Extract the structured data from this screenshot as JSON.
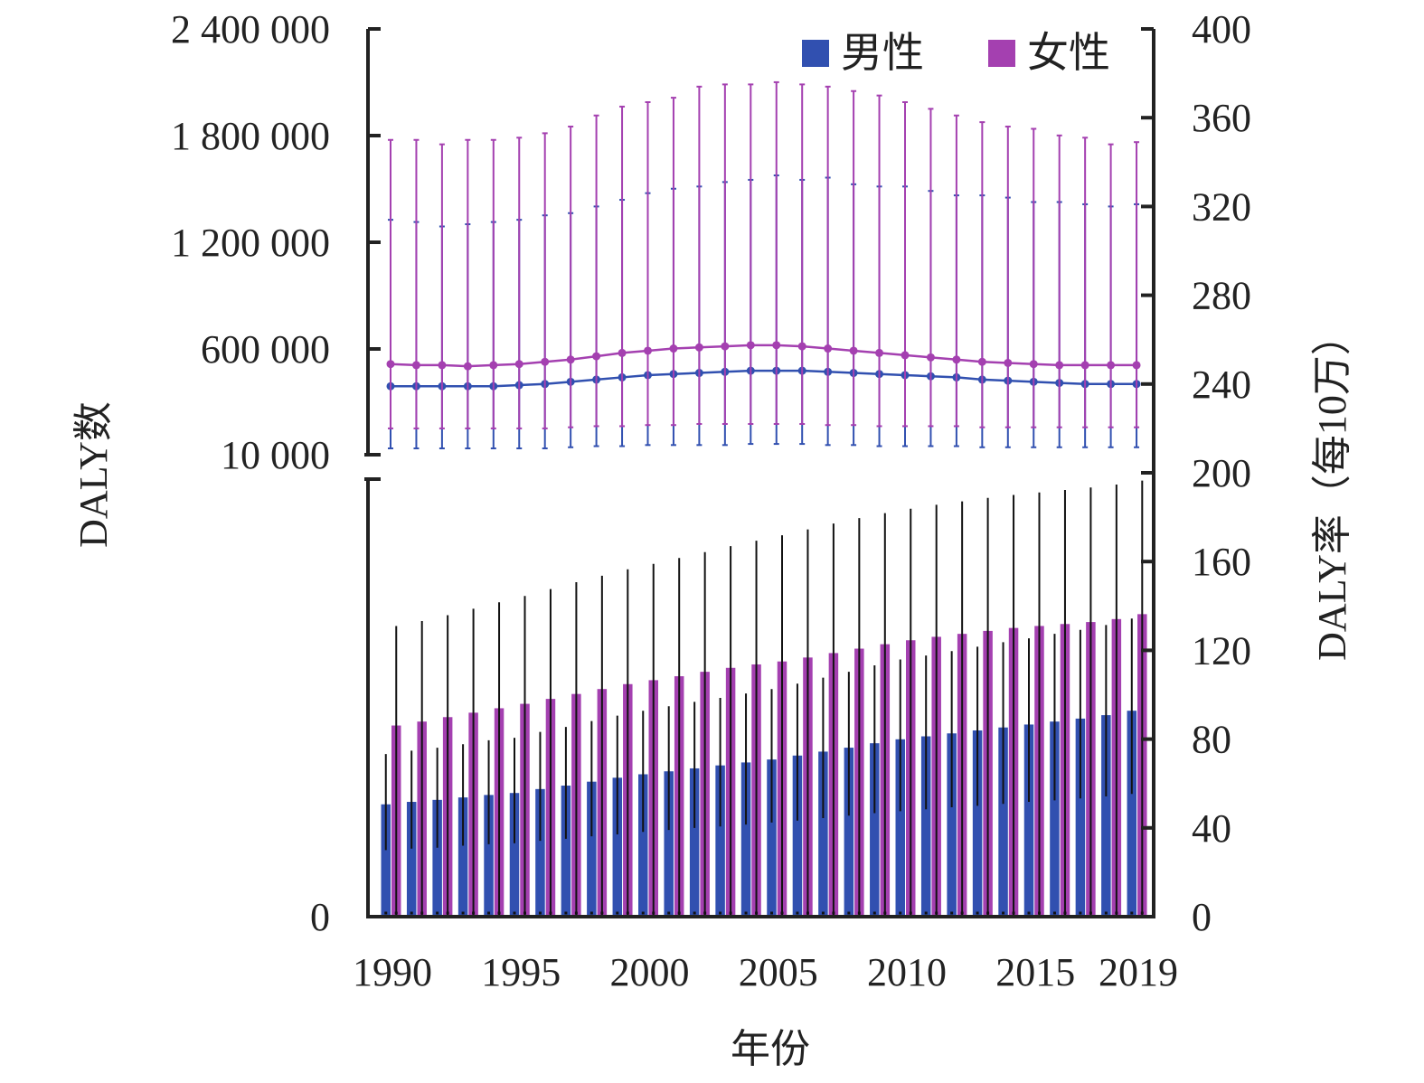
{
  "chart_data": {
    "type": "bar",
    "title": "",
    "xlabel": "年份",
    "ylabel_left": "DALY数",
    "ylabel_right": "DALY率（每10万）",
    "x": [
      1990,
      1991,
      1992,
      1993,
      1994,
      1995,
      1996,
      1997,
      1998,
      1999,
      2000,
      2001,
      2002,
      2003,
      2004,
      2005,
      2006,
      2007,
      2008,
      2009,
      2010,
      2011,
      2012,
      2013,
      2014,
      2015,
      2016,
      2017,
      2018,
      2019
    ],
    "x_tick_labels": [
      "1990",
      "1995",
      "2000",
      "2005",
      "2010",
      "2015",
      "2019"
    ],
    "left_ticks": [
      "0",
      "10 000",
      "600 000",
      "1 200 000",
      "1 800 000",
      "2 400 000"
    ],
    "right_ticks": [
      "0",
      "40",
      "80",
      "120",
      "160",
      "200",
      "240",
      "280",
      "320",
      "360",
      "400"
    ],
    "left_axis_break": "between 0 and 10 000",
    "right_ylim": [
      0,
      400
    ],
    "legend": {
      "position": "top-right",
      "entries": [
        "男性",
        "女性"
      ]
    },
    "colors": {
      "male": "#3150b0",
      "female": "#a440b0",
      "axis": "#222222",
      "errorbar": "#111111"
    },
    "series": [
      {
        "name": "男性",
        "kind": "bar",
        "axis": "left",
        "values": [
          228000.0,
          233000.0,
          237000.0,
          242000.0,
          247000.0,
          251000.0,
          259000.0,
          266000.0,
          274000.0,
          282000.0,
          289000.0,
          295000.0,
          301000.0,
          307000.0,
          313000.0,
          319000.0,
          327000.0,
          335000.0,
          343000.0,
          352000.0,
          360000.0,
          366000.0,
          372000.0,
          378000.0,
          384000.0,
          390000.0,
          396000.0,
          402000.0,
          409000.0,
          418000.0
        ],
        "error_low": [
          135000.0,
          138000.0,
          140000.0,
          144000.0,
          147000.0,
          149000.0,
          154000.0,
          158000.0,
          163000.0,
          167000.0,
          172000.0,
          176000.0,
          180000.0,
          183000.0,
          187000.0,
          191000.0,
          195000.0,
          200000.0,
          205000.0,
          210000.0,
          214000.0,
          218000.0,
          222000.0,
          225000.0,
          229000.0,
          233000.0,
          236000.0,
          240000.0,
          244000.0,
          249000.0
        ],
        "error_high": [
          330000.0,
          337000.0,
          343000.0,
          350000.0,
          358000.0,
          363000.0,
          375000.0,
          385000.0,
          397000.0,
          408000.0,
          418000.0,
          427000.0,
          436000.0,
          444000.0,
          453000.0,
          462000.0,
          473000.0,
          485000.0,
          497000.0,
          510000.0,
          522000.0,
          530000.0,
          539000.0,
          548000.0,
          557000.0,
          565000.0,
          574000.0,
          582000.0,
          592000.0,
          605000.0
        ]
      },
      {
        "name": "女性",
        "kind": "bar",
        "axis": "left",
        "values": [
          388000.0,
          396000.0,
          405000.0,
          414000.0,
          423000.0,
          432000.0,
          442000.0,
          452000.0,
          462000.0,
          472000.0,
          480000.0,
          488000.0,
          497000.0,
          505000.0,
          512000.0,
          518000.0,
          526000.0,
          535000.0,
          544000.0,
          553000.0,
          561000.0,
          568000.0,
          574000.0,
          580000.0,
          586000.0,
          590000.0,
          594000.0,
          598000.0,
          604000.0,
          614000.0
        ],
        "error_low": [
          0,
          0,
          0,
          0,
          0,
          0,
          0,
          0,
          0,
          0,
          0,
          0,
          0,
          0,
          0,
          0,
          0,
          0,
          0,
          0,
          0,
          0,
          0,
          0,
          0,
          0,
          0,
          0,
          0,
          0
        ],
        "error_high": [
          590000.0,
          600000.0,
          612000.0,
          625000.0,
          638000.0,
          651000.0,
          665000.0,
          679000.0,
          692000.0,
          705000.0,
          716000.0,
          728000.0,
          740000.0,
          752000.0,
          763000.0,
          774000.0,
          786000.0,
          798000.0,
          809000.0,
          819000.0,
          828000.0,
          836000.0,
          843000.0,
          850000.0,
          856000.0,
          861000.0,
          866000.0,
          871000.0,
          877000.0,
          885000.0
        ]
      },
      {
        "name": "男性",
        "kind": "line",
        "axis": "right",
        "values": [
          239,
          239,
          239,
          239,
          239,
          239.5,
          240,
          241,
          242,
          243,
          244,
          244.5,
          245,
          245.5,
          246,
          246,
          246,
          245.5,
          245,
          244.5,
          244,
          243.5,
          243,
          242,
          241.5,
          241,
          240.5,
          240,
          240,
          240
        ],
        "error_low": [
          211,
          211,
          211,
          211,
          211,
          211,
          211,
          211.5,
          212,
          212,
          212.5,
          212.5,
          212.5,
          212.5,
          213,
          213,
          213,
          212.5,
          212.5,
          212,
          212,
          212,
          212,
          211.5,
          211.5,
          211.5,
          211.5,
          211.5,
          211.5,
          211.5
        ],
        "error_high": [
          314,
          313,
          311,
          312,
          313,
          314,
          316,
          317,
          320,
          323,
          326,
          328,
          329,
          331,
          332,
          334,
          332,
          333,
          330,
          329,
          329,
          327,
          325,
          325,
          324,
          322,
          322,
          321,
          320,
          321
        ]
      },
      {
        "name": "女性",
        "kind": "line",
        "axis": "right",
        "values": [
          249,
          248.5,
          248.5,
          248,
          248.5,
          249,
          250,
          251,
          252.5,
          254,
          255,
          256,
          256.5,
          257,
          257.5,
          257.5,
          257,
          256,
          255,
          254,
          253,
          252,
          251,
          250,
          249.5,
          249,
          248.5,
          248.5,
          248.5,
          248.5
        ],
        "error_low": [
          220,
          220,
          220,
          220,
          220,
          220,
          220,
          220.5,
          221,
          221,
          221.5,
          221.5,
          222,
          222,
          222,
          222,
          222,
          221.5,
          221.5,
          221,
          221,
          221,
          221,
          220.5,
          220.5,
          220.5,
          220.5,
          220.5,
          220.5,
          220.5
        ],
        "error_high": [
          350,
          350,
          348,
          350,
          350,
          351,
          353,
          356,
          361,
          365,
          367,
          369,
          374,
          375,
          375,
          376,
          375,
          374,
          372,
          370,
          367,
          364,
          361,
          358,
          356,
          355,
          352,
          351,
          348,
          349
        ]
      }
    ]
  }
}
